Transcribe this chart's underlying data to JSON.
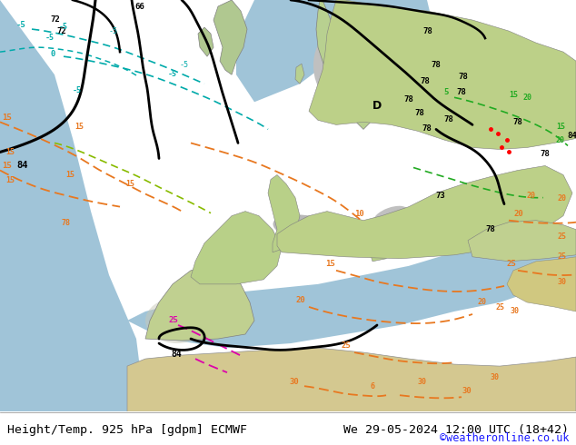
{
  "title_left": "Height/Temp. 925 hPa [gdpm] ECMWF",
  "title_right": "We 29-05-2024 12:00 UTC (18+42)",
  "credit": "©weatheronline.co.uk",
  "fig_width": 6.34,
  "fig_height": 4.9,
  "dpi": 100,
  "bg_color": "#ffffff",
  "title_fontsize": 9.5,
  "credit_fontsize": 8.5,
  "credit_color": "#1a1aff",
  "label_color": "#000000",
  "map_bg_color": "#c8e6a0",
  "sea_color": "#a8c8e0",
  "gray_color": "#b0b0b0",
  "dark_land_color": "#909090"
}
